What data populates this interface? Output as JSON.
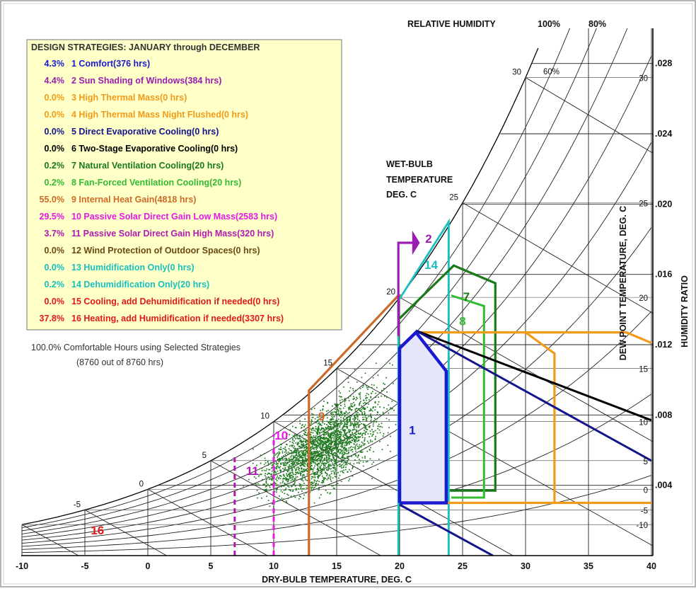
{
  "chart_data": {
    "type": "psychrometric",
    "xlabel": "DRY-BULB TEMPERATURE, DEG. C",
    "ylabel_right": "HUMIDITY RATIO",
    "dew_point_label": "DEW POINT TEMPERATURE, DEG. C",
    "wet_bulb_label": [
      "WET-BULB",
      "TEMPERATURE",
      "DEG. C"
    ],
    "rh_label": "RELATIVE HUMIDITY",
    "rh_values": [
      "100%",
      "80%",
      "60%"
    ],
    "x_ticks": [
      "-10",
      "-5",
      "0",
      "5",
      "10",
      "15",
      "20",
      "25",
      "30",
      "35",
      "40"
    ],
    "xlim": [
      -10,
      40
    ],
    "ylim": [
      0,
      0.03
    ],
    "humidity_ratio_ticks": [
      ".004",
      ".008",
      ".012",
      ".016",
      ".020",
      ".024",
      ".028"
    ],
    "dew_point_ticks": [
      "-10",
      "-5",
      "0",
      "5",
      "10",
      "15",
      "20",
      "25",
      "30"
    ],
    "wet_bulb_ticks": [
      "-5",
      "0",
      "5",
      "10",
      "15",
      "20",
      "25",
      "30"
    ],
    "legend": {
      "title": "DESIGN STRATEGIES:  JANUARY through DECEMBER",
      "items": [
        {
          "pct": "4.3%",
          "label": "1  Comfort(376 hrs)",
          "color": "#1a1ad0"
        },
        {
          "pct": "4.4%",
          "label": "2  Sun Shading of Windows(384 hrs)",
          "color": "#9a1fb0"
        },
        {
          "pct": "0.0%",
          "label": "3  High Thermal Mass(0 hrs)",
          "color": "#f29a1a"
        },
        {
          "pct": "0.0%",
          "label": "4  High Thermal Mass Night Flushed(0 hrs)",
          "color": "#f29a1a"
        },
        {
          "pct": "0.0%",
          "label": "5  Direct Evaporative Cooling(0 hrs)",
          "color": "#14148c"
        },
        {
          "pct": "0.0%",
          "label": "6  Two-Stage Evaporative Cooling(0 hrs)",
          "color": "#000000"
        },
        {
          "pct": "0.2%",
          "label": "7  Natural Ventilation Cooling(20 hrs)",
          "color": "#1a7a1a"
        },
        {
          "pct": "0.2%",
          "label": "8  Fan-Forced Ventilation Cooling(20 hrs)",
          "color": "#33bb33"
        },
        {
          "pct": "55.0%",
          "label": "9  Internal Heat Gain(4818 hrs)",
          "color": "#cc6a2a"
        },
        {
          "pct": "29.5%",
          "label": "10  Passive Solar Direct Gain Low Mass(2583 hrs)",
          "color": "#e619e6"
        },
        {
          "pct": "3.7%",
          "label": "11  Passive Solar Direct Gain High Mass(320 hrs)",
          "color": "#b01ab0"
        },
        {
          "pct": "0.0%",
          "label": "12  Wind Protection of Outdoor Spaces(0 hrs)",
          "color": "#6b4a12"
        },
        {
          "pct": "0.0%",
          "label": "13  Humidification Only(0 hrs)",
          "color": "#19c0c0"
        },
        {
          "pct": "0.2%",
          "label": "14  Dehumidification Only(20 hrs)",
          "color": "#19c0c0"
        },
        {
          "pct": "0.0%",
          "label": "15  Cooling, add Dehumidification if needed(0 hrs)",
          "color": "#e01a1a"
        },
        {
          "pct": "37.8%",
          "label": "16  Heating, add Humidification if needed(3307 hrs)",
          "color": "#e01a1a"
        }
      ]
    },
    "summary": [
      "100.0%  Comfortable Hours using Selected Strategies",
      "(8760 out of 8760 hrs)"
    ],
    "zone_labels": [
      {
        "text": "1",
        "color": "#1a1ad0"
      },
      {
        "text": "2",
        "color": "#9a1fb0"
      },
      {
        "text": "7",
        "color": "#1a7a1a"
      },
      {
        "text": "8",
        "color": "#33bb33"
      },
      {
        "text": "9",
        "color": "#cc6a2a"
      },
      {
        "text": "10",
        "color": "#e619e6"
      },
      {
        "text": "11",
        "color": "#b01ab0"
      },
      {
        "text": "14",
        "color": "#19c0c0"
      },
      {
        "text": "16",
        "color": "#e01a1a"
      }
    ],
    "point_color": "#1f7a1f"
  }
}
